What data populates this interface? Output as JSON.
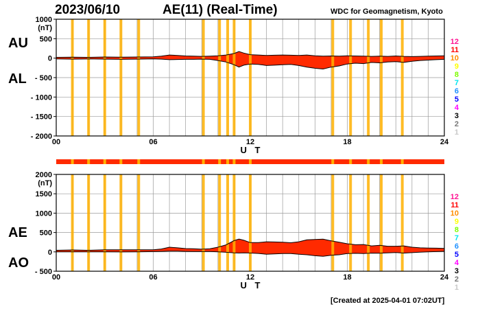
{
  "header": {
    "date": "2023/06/10",
    "title": "AE(11) (Real-Time)",
    "source": "WDC for Geomagnetism, Kyoto"
  },
  "footer": {
    "created": "[Created at 2025-04-01 07:02UT]"
  },
  "colors": {
    "fill": "#ff2a00",
    "highlight": "#ffb000",
    "grid": "#9a9a9a",
    "station_count_colors": {
      "12": "#ff1493",
      "11": "#ff0000",
      "10": "#ff8c00",
      "9": "#ffff00",
      "8": "#7cfc00",
      "7": "#00e5ee",
      "6": "#1e90ff",
      "5": "#0000ff",
      "4": "#ff00ff",
      "3": "#000000",
      "2": "#777777",
      "1": "#c8c8c8"
    }
  },
  "station_count_scale": [
    "12",
    "11",
    "10",
    "9",
    "8",
    "7",
    "6",
    "5",
    "4",
    "3",
    "2",
    "1"
  ],
  "station_indicator_marks_ut": [
    1,
    2,
    3,
    4,
    5.1,
    9.1,
    10.1,
    10.6,
    11,
    12,
    17.1,
    18.2,
    19.3,
    20.1,
    21.4
  ],
  "chart_data": [
    {
      "type": "area",
      "panel": "AU/AL",
      "series_labels": [
        "AU",
        "AL"
      ],
      "ylabel": "(nT)",
      "xlabel": "U T",
      "xlim": [
        0,
        24
      ],
      "ylim": [
        -2000,
        1000
      ],
      "x_ticks": [
        "00",
        "06",
        "12",
        "18",
        "24"
      ],
      "x_tick_values": [
        0,
        6,
        12,
        18,
        24
      ],
      "y_ticks": [
        "1000",
        "500",
        "0",
        "- 500",
        "- 1000",
        "- 1500",
        "- 2000"
      ],
      "y_tick_values": [
        1000,
        500,
        0,
        -500,
        -1000,
        -1500,
        -2000
      ],
      "grid": true,
      "series": [
        {
          "name": "AU",
          "x": [
            0,
            1,
            2,
            3,
            4,
            5,
            6,
            6.5,
            7,
            7.5,
            8,
            8.5,
            9,
            9.5,
            10,
            10.5,
            11,
            11.3,
            11.6,
            12,
            12.5,
            13,
            13.5,
            14,
            14.5,
            15,
            15.5,
            16,
            16.5,
            17,
            17.5,
            18,
            18.5,
            19,
            19.5,
            20,
            20.5,
            21,
            21.5,
            22,
            22.5,
            23,
            23.5,
            24
          ],
          "values": [
            20,
            25,
            20,
            30,
            25,
            30,
            35,
            50,
            80,
            70,
            55,
            50,
            45,
            50,
            60,
            80,
            120,
            170,
            130,
            90,
            80,
            70,
            75,
            80,
            75,
            70,
            80,
            60,
            50,
            55,
            50,
            60,
            55,
            50,
            45,
            50,
            45,
            55,
            45,
            40,
            45,
            50,
            55,
            60
          ]
        },
        {
          "name": "AL",
          "x": [
            0,
            1,
            2,
            3,
            4,
            5,
            6,
            6.5,
            7,
            7.5,
            8,
            8.5,
            9,
            9.5,
            10,
            10.5,
            11,
            11.3,
            11.6,
            12,
            12.5,
            13,
            13.5,
            14,
            14.5,
            15,
            15.5,
            16,
            16.5,
            17,
            17.5,
            18,
            18.5,
            19,
            19.5,
            20,
            20.5,
            21,
            21.5,
            22,
            22.5,
            23,
            23.5,
            24
          ],
          "values": [
            -20,
            -25,
            -20,
            -25,
            -30,
            -25,
            -20,
            -25,
            -40,
            -35,
            -30,
            -30,
            -25,
            -30,
            -60,
            -100,
            -170,
            -230,
            -180,
            -150,
            -160,
            -190,
            -180,
            -170,
            -160,
            -190,
            -230,
            -260,
            -280,
            -230,
            -200,
            -150,
            -130,
            -140,
            -110,
            -120,
            -100,
            -90,
            -110,
            -80,
            -60,
            -50,
            -40,
            -30
          ]
        }
      ]
    },
    {
      "type": "area",
      "panel": "AE/AO",
      "series_labels": [
        "AE",
        "AO"
      ],
      "ylabel": "(nT)",
      "xlabel": "U T",
      "xlim": [
        0,
        24
      ],
      "ylim": [
        -500,
        2000
      ],
      "x_ticks": [
        "00",
        "06",
        "12",
        "18",
        "24"
      ],
      "x_tick_values": [
        0,
        6,
        12,
        18,
        24
      ],
      "y_ticks": [
        "2000",
        "1500",
        "1000",
        "500",
        "0",
        "- 500"
      ],
      "y_tick_values": [
        2000,
        1500,
        1000,
        500,
        0,
        -500
      ],
      "grid": true,
      "series": [
        {
          "name": "AE",
          "x": [
            0,
            1,
            2,
            3,
            4,
            5,
            6,
            6.5,
            7,
            7.5,
            8,
            8.5,
            9,
            9.5,
            10,
            10.5,
            11,
            11.3,
            11.6,
            12,
            12.5,
            13,
            13.5,
            14,
            14.5,
            15,
            15.5,
            16,
            16.5,
            17,
            17.5,
            18,
            18.5,
            19,
            19.5,
            20,
            20.5,
            21,
            21.5,
            22,
            22.5,
            23,
            23.5,
            24
          ],
          "values": [
            40,
            50,
            40,
            55,
            55,
            55,
            55,
            75,
            120,
            105,
            85,
            80,
            70,
            80,
            120,
            180,
            290,
            330,
            300,
            240,
            240,
            260,
            255,
            250,
            235,
            260,
            310,
            320,
            330,
            285,
            250,
            210,
            185,
            190,
            155,
            170,
            145,
            145,
            155,
            120,
            105,
            100,
            95,
            90
          ]
        },
        {
          "name": "AO",
          "x": [
            0,
            1,
            2,
            3,
            4,
            5,
            6,
            6.5,
            7,
            7.5,
            8,
            8.5,
            9,
            9.5,
            10,
            10.5,
            11,
            11.3,
            11.6,
            12,
            12.5,
            13,
            13.5,
            14,
            14.5,
            15,
            15.5,
            16,
            16.5,
            17,
            17.5,
            18,
            18.5,
            19,
            19.5,
            20,
            20.5,
            21,
            21.5,
            22,
            22.5,
            23,
            23.5,
            24
          ],
          "values": [
            0,
            0,
            0,
            2,
            -2,
            2,
            7,
            12,
            20,
            17,
            12,
            10,
            10,
            10,
            0,
            -10,
            -25,
            -30,
            -25,
            -30,
            -40,
            -60,
            -52,
            -45,
            -42,
            -60,
            -75,
            -100,
            -115,
            -87,
            -75,
            -45,
            -37,
            -45,
            -32,
            -35,
            -27,
            -17,
            -32,
            -20,
            -7,
            0,
            7,
            15
          ]
        }
      ]
    }
  ]
}
